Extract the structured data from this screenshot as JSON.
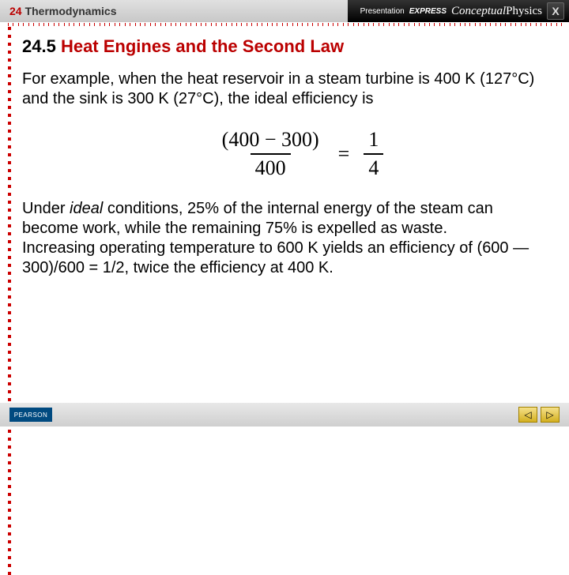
{
  "header": {
    "chapter_num": "24",
    "chapter_title": "Thermodynamics",
    "brand_pres": "Presentation",
    "brand_express": "EXPRESS",
    "brand_con": "Conceptual",
    "brand_phys": "Physics",
    "close_glyph": "X"
  },
  "section": {
    "number": "24.5",
    "title": "Heat Engines and the Second Law"
  },
  "para1": "For example, when the heat reservoir in a steam turbine is 400 K (127°C) and the sink is 300 K (27°C), the ideal efficiency is",
  "formula": {
    "left_num": "(400 − 300)",
    "left_den": "400",
    "eq": "=",
    "right_num": "1",
    "right_den": "4"
  },
  "para2a": "Under ",
  "para2_ideal": "ideal",
  "para2b": " conditions, 25% of the internal energy of the steam can become work, while the remaining 75% is expelled as waste.",
  "para3": "Increasing operating temperature to 600 K yields an efficiency of (600 — 300)/600 = 1/2, twice the efficiency at 400 K.",
  "footer": {
    "pearson": "PEARSON",
    "prev": "◁",
    "next": "▷"
  },
  "colors": {
    "accent": "#b00000",
    "dot": "#c00000"
  }
}
